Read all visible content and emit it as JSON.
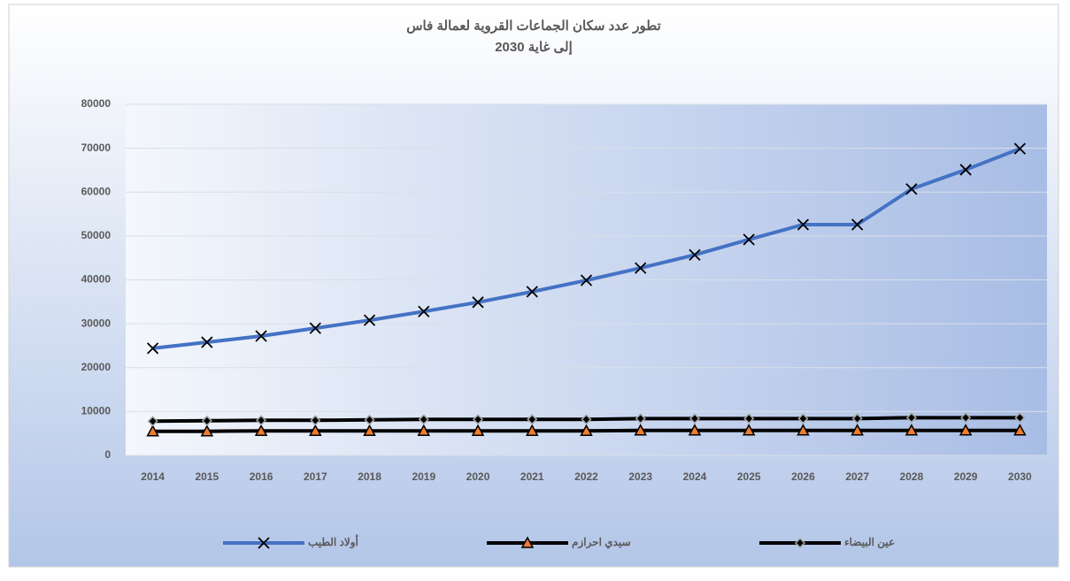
{
  "chart_data": {
    "type": "line",
    "title": [
      "تطور عدد سكان الجماعات القروية لعمالة فاس",
      "إلى غاية 2030"
    ],
    "categories": [
      "2014",
      "2015",
      "2016",
      "2017",
      "2018",
      "2019",
      "2020",
      "2021",
      "2022",
      "2023",
      "2024",
      "2025",
      "2026",
      "2027",
      "2028",
      "2029",
      "2030"
    ],
    "series": [
      {
        "name": "أولاد الطيب",
        "color": "#4472c4",
        "marker": "x",
        "values": [
          24400,
          25800,
          27200,
          29000,
          30800,
          32800,
          34900,
          37300,
          39900,
          42700,
          45700,
          49200,
          52600,
          52600,
          60700,
          65100,
          69900
        ]
      },
      {
        "name": "سيدي احرازم",
        "color": "#000000",
        "marker": "triangle",
        "values": [
          5500,
          5500,
          5600,
          5600,
          5600,
          5600,
          5600,
          5600,
          5600,
          5700,
          5700,
          5700,
          5700,
          5700,
          5700,
          5700,
          5700
        ]
      },
      {
        "name": "عين البيضاء",
        "color": "#000000",
        "marker": "diamond",
        "values": [
          7800,
          7900,
          8000,
          8000,
          8100,
          8200,
          8200,
          8200,
          8200,
          8400,
          8400,
          8400,
          8400,
          8400,
          8600,
          8600,
          8600
        ]
      }
    ],
    "ylim": [
      0,
      80000
    ],
    "yticks": [
      0,
      10000,
      20000,
      30000,
      40000,
      50000,
      60000,
      70000,
      80000
    ],
    "grid": true,
    "legend": "bottom"
  }
}
